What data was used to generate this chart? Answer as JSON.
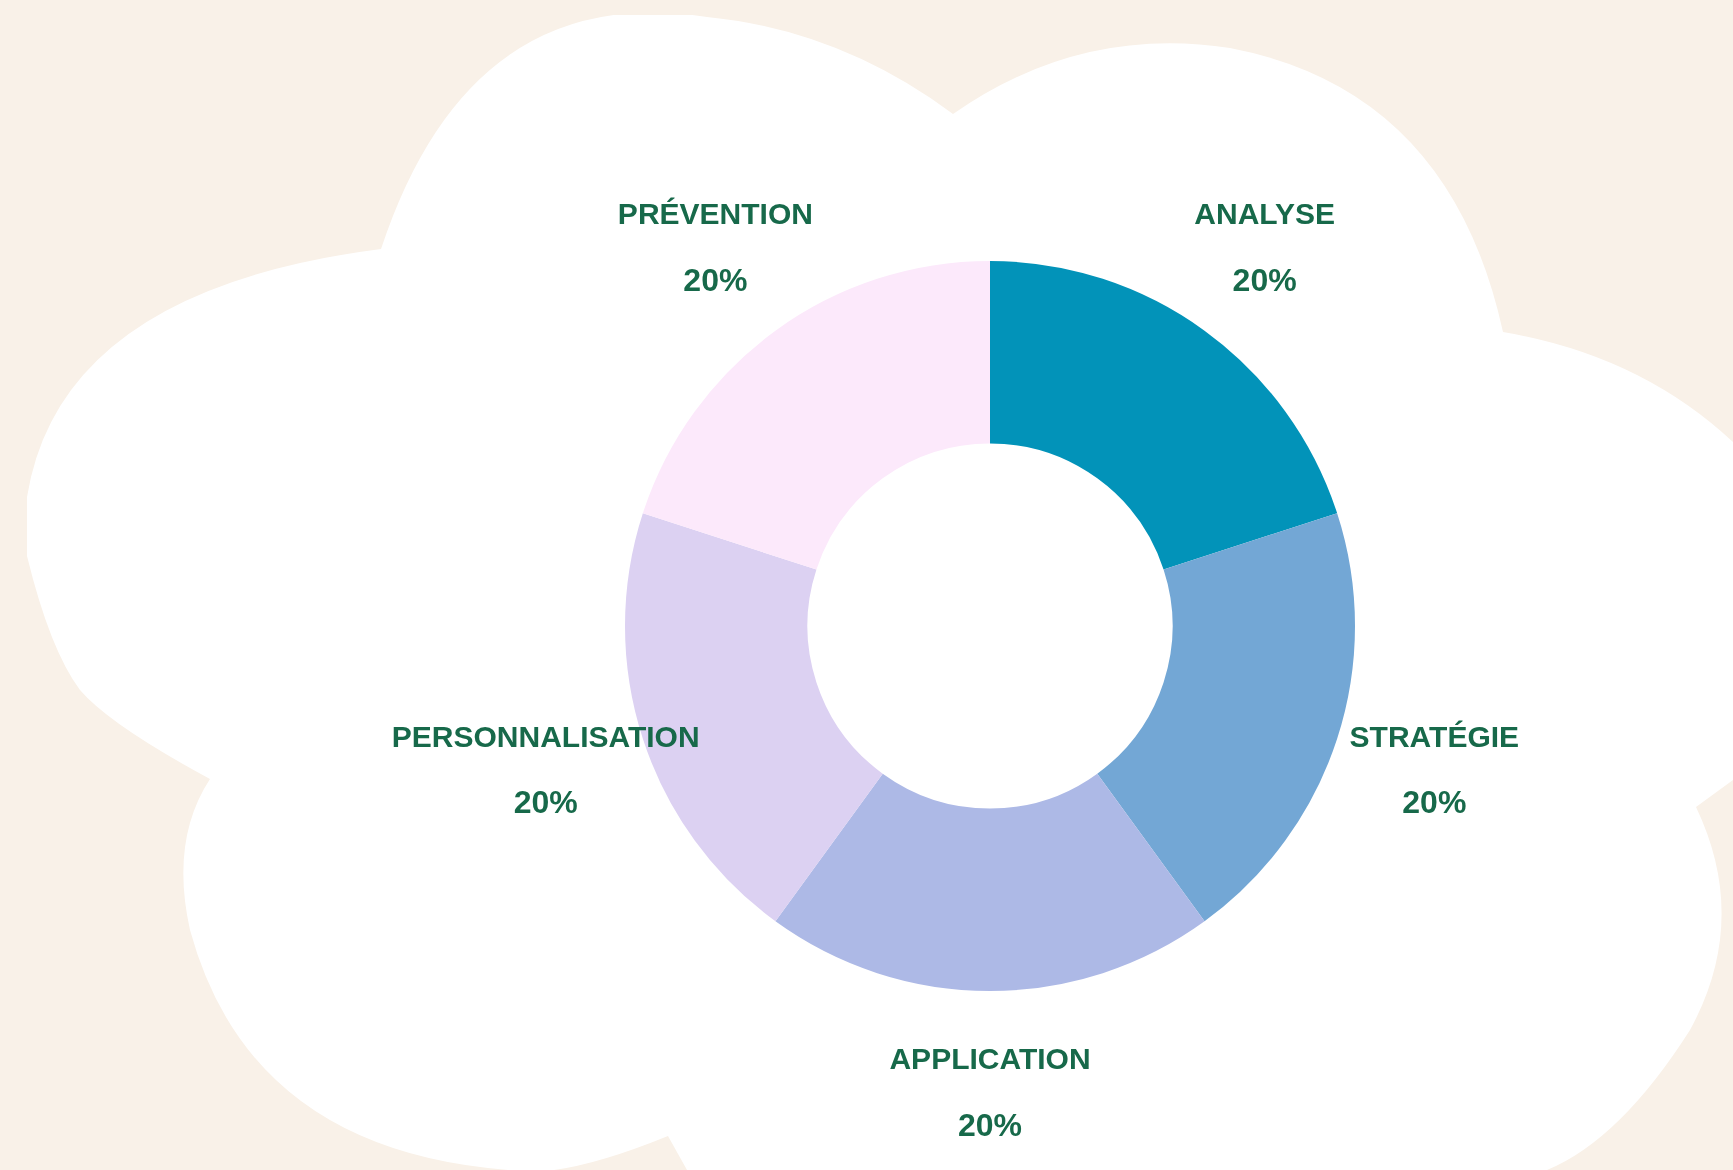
{
  "chart_data": {
    "type": "donut",
    "categories": [
      "ANALYSE",
      "STRATÉGIE",
      "APPLICATION",
      "PERSONNALISATION",
      "PRÉVENTION"
    ],
    "values": [
      20,
      20,
      20,
      20,
      20
    ],
    "colors": [
      "#0293b9",
      "#73a7d5",
      "#adb9e6",
      "#dcd1f2",
      "#fce9fb"
    ],
    "value_labels": [
      "20%",
      "20%",
      "20%",
      "20%",
      "20%"
    ]
  }
}
